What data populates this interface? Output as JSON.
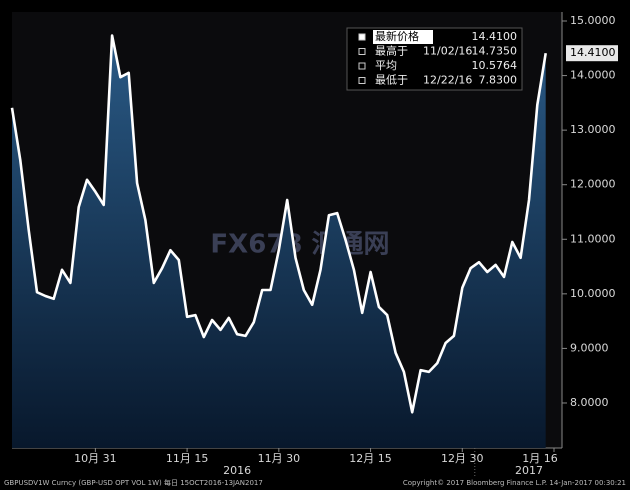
{
  "chart_data": {
    "type": "area",
    "series": [
      {
        "name": "GBPUSDV1W Curncy",
        "color": "#ffffff",
        "values": [
          13.41,
          12.45,
          11.17,
          10.03,
          9.96,
          9.91,
          10.44,
          10.2,
          11.59,
          12.09,
          11.87,
          11.63,
          14.735,
          13.97,
          14.05,
          12.03,
          11.35,
          10.2,
          10.47,
          10.8,
          10.62,
          9.58,
          9.61,
          9.21,
          9.52,
          9.34,
          9.56,
          9.26,
          9.23,
          9.48,
          10.07,
          10.07,
          10.8,
          11.72,
          10.66,
          10.07,
          9.8,
          10.44,
          11.44,
          11.48,
          10.99,
          10.44,
          9.65,
          10.4,
          9.76,
          9.61,
          8.92,
          8.57,
          7.83,
          8.6,
          8.57,
          8.73,
          9.1,
          9.23,
          10.11,
          10.47,
          10.58,
          10.4,
          10.53,
          10.31,
          10.95,
          10.66,
          11.72,
          13.46,
          14.41,
          null
        ]
      }
    ],
    "categories": [
      null,
      null,
      null,
      null,
      null,
      null,
      null,
      null,
      null,
      null,
      "10月 31",
      null,
      null,
      null,
      null,
      null,
      null,
      null,
      null,
      null,
      null,
      "11月 15",
      null,
      null,
      null,
      null,
      null,
      null,
      null,
      null,
      null,
      null,
      "11月 30",
      null,
      null,
      null,
      null,
      null,
      null,
      null,
      null,
      null,
      null,
      "12月 15",
      null,
      null,
      null,
      null,
      null,
      null,
      null,
      null,
      null,
      null,
      "12月 30",
      null,
      null,
      null,
      null,
      null,
      null,
      null,
      null,
      null,
      null,
      "1月 16"
    ],
    "years": [
      "2016",
      "2017"
    ],
    "ylim": [
      7.175,
      15.165
    ],
    "yticks": [
      {
        "value": 8,
        "label": "8.0000"
      },
      {
        "value": 9,
        "label": "9.0000"
      },
      {
        "value": 10,
        "label": "10.0000"
      },
      {
        "value": 11,
        "label": "11.0000"
      },
      {
        "value": 12,
        "label": "12.0000"
      },
      {
        "value": 13,
        "label": "13.0000"
      },
      {
        "value": 14,
        "label": "14.0000"
      },
      {
        "value": 15,
        "label": "15.0000"
      }
    ],
    "current_tag": "14.4100",
    "legend": [
      [
        "最新价格",
        "",
        "14.4100"
      ],
      [
        "最高于",
        "11/02/16",
        "14.7350"
      ],
      [
        "平均",
        "",
        "10.5764"
      ],
      [
        "最低于",
        "12/22/16",
        "7.8300"
      ]
    ],
    "watermark": "FX678 汇通网",
    "footer_left": "GBPUSDV1W Curncy (GBP-USD OPT VOL 1W)  每日  15OCT2016-13JAN2017",
    "footer_right": "Copyright© 2017 Bloomberg Finance L.P.     14-Jan-2017 00:30:21"
  }
}
